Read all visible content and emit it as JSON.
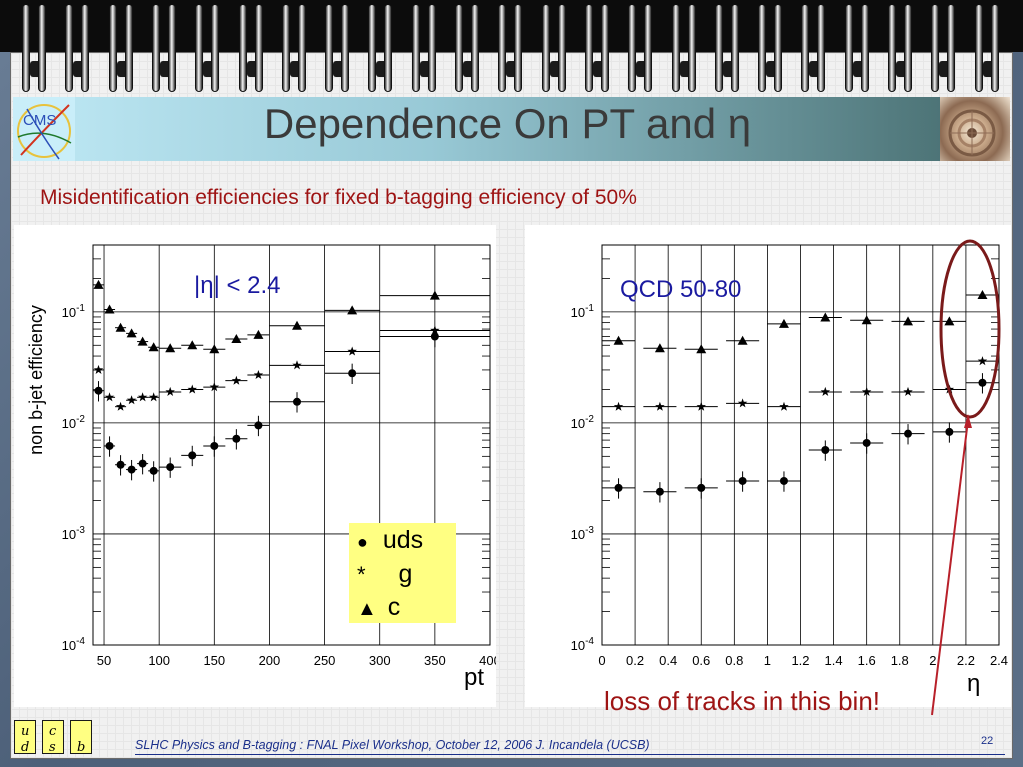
{
  "slide": {
    "title": "Dependence On PT and η",
    "subtitle": "Misidentification efficiencies for fixed b-tagging efficiency of 50%",
    "footer": "SLHC Physics and B-tagging : FNAL Pixel Workshop, October 12, 2006   J. Incandela (UCSB)",
    "page_number": "22",
    "cms_logo_text": "CMS",
    "quark_boxes": [
      "u",
      "d",
      "c",
      "s",
      "b"
    ]
  },
  "legend": {
    "items": [
      {
        "marker": "●",
        "label": "uds"
      },
      {
        "marker": "*",
        "label": "g"
      },
      {
        "marker": "▲",
        "label": "c"
      }
    ]
  },
  "annotation": {
    "text": "loss of tracks in this bin!",
    "color": "#9e1414"
  },
  "colors": {
    "title_band_start": "#bfe9f5",
    "title_band_end": "#4d7477",
    "subtitle": "#9e1414",
    "annotation": "#9e1414",
    "label_blue": "#1a1aa0",
    "legend_bg": "#ffff82"
  },
  "chart_data": [
    {
      "type": "scatter",
      "ylabel": "non b-jet efficiency",
      "xlabel": "pt",
      "label": "|η| < 2.4",
      "xlim": [
        40,
        400
      ],
      "ylim": [
        0.0001,
        0.4
      ],
      "y_scale": "log",
      "x_ticks": [
        "50",
        "100",
        "150",
        "200",
        "250",
        "300",
        "350",
        "400"
      ],
      "y_ticks": [
        {
          "value": 0.1,
          "label": "10",
          "exp": "-1"
        },
        {
          "value": 0.01,
          "label": "10",
          "exp": "-2"
        },
        {
          "value": 0.001,
          "label": "10",
          "exp": "-3"
        },
        {
          "value": 0.0001,
          "label": "10",
          "exp": "-4"
        }
      ],
      "series": [
        {
          "name": "c",
          "marker": "triangle",
          "x": [
            45,
            55,
            65,
            75,
            85,
            95,
            110,
            130,
            150,
            170,
            190,
            225,
            275,
            350
          ],
          "xerr": [
            5,
            5,
            5,
            5,
            5,
            5,
            10,
            10,
            10,
            10,
            10,
            25,
            25,
            50
          ],
          "y": [
            0.175,
            0.105,
            0.072,
            0.064,
            0.054,
            0.048,
            0.047,
            0.05,
            0.046,
            0.057,
            0.062,
            0.075,
            0.103,
            0.14
          ]
        },
        {
          "name": "g",
          "marker": "star",
          "x": [
            45,
            55,
            65,
            75,
            85,
            95,
            110,
            130,
            150,
            170,
            190,
            225,
            275,
            350
          ],
          "xerr": [
            5,
            5,
            5,
            5,
            5,
            5,
            10,
            10,
            10,
            10,
            10,
            25,
            25,
            50
          ],
          "y": [
            0.03,
            0.017,
            0.014,
            0.016,
            0.017,
            0.017,
            0.019,
            0.02,
            0.021,
            0.024,
            0.027,
            0.033,
            0.044,
            0.068
          ]
        },
        {
          "name": "uds",
          "marker": "circle",
          "x": [
            45,
            55,
            65,
            75,
            85,
            95,
            110,
            130,
            150,
            170,
            190,
            225,
            275,
            350
          ],
          "xerr": [
            5,
            5,
            5,
            5,
            5,
            5,
            10,
            10,
            10,
            10,
            10,
            25,
            25,
            50
          ],
          "y": [
            0.0195,
            0.0062,
            0.0042,
            0.0038,
            0.0043,
            0.0037,
            0.004,
            0.0051,
            0.0062,
            0.0072,
            0.0095,
            0.0155,
            0.028,
            0.06
          ]
        }
      ]
    },
    {
      "type": "scatter",
      "xlabel": "η",
      "label": "QCD 50-80",
      "xlim": [
        0,
        2.4
      ],
      "ylim": [
        0.0001,
        0.4
      ],
      "y_scale": "log",
      "x_ticks": [
        "0",
        "0.2",
        "0.4",
        "0.6",
        "0.8",
        "1",
        "1.2",
        "1.4",
        "1.6",
        "1.8",
        "2",
        "2.2",
        "2.4"
      ],
      "y_ticks": [
        {
          "value": 0.1,
          "label": "10",
          "exp": "-1"
        },
        {
          "value": 0.01,
          "label": "10",
          "exp": "-2"
        },
        {
          "value": 0.001,
          "label": "10",
          "exp": "-3"
        },
        {
          "value": 0.0001,
          "label": "10",
          "exp": "-4"
        }
      ],
      "series": [
        {
          "name": "c",
          "marker": "triangle",
          "x": [
            0.1,
            0.35,
            0.6,
            0.85,
            1.1,
            1.35,
            1.6,
            1.85,
            2.1,
            2.3
          ],
          "y": [
            0.055,
            0.047,
            0.046,
            0.055,
            0.078,
            0.089,
            0.084,
            0.082,
            0.082,
            0.142
          ]
        },
        {
          "name": "g",
          "marker": "star",
          "x": [
            0.1,
            0.35,
            0.6,
            0.85,
            1.1,
            1.35,
            1.6,
            1.85,
            2.1,
            2.3
          ],
          "y": [
            0.014,
            0.014,
            0.014,
            0.015,
            0.014,
            0.019,
            0.019,
            0.019,
            0.02,
            0.036
          ]
        },
        {
          "name": "uds",
          "marker": "circle",
          "x": [
            0.1,
            0.35,
            0.6,
            0.85,
            1.1,
            1.35,
            1.6,
            1.85,
            2.1,
            2.3
          ],
          "y": [
            0.0026,
            0.0024,
            0.0026,
            0.003,
            0.003,
            0.0057,
            0.0066,
            0.008,
            0.0083,
            0.023
          ]
        }
      ]
    }
  ]
}
